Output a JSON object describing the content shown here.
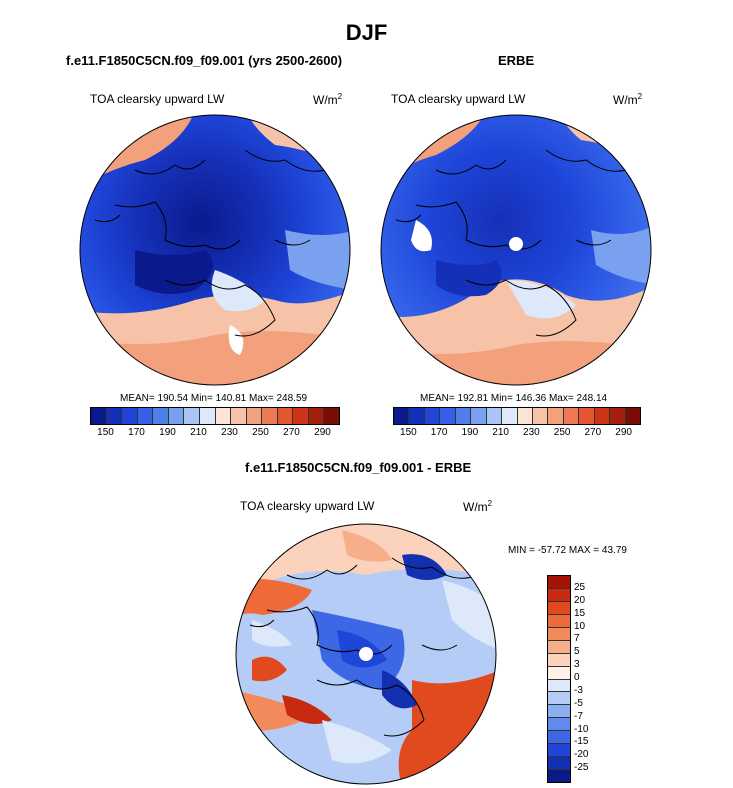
{
  "figure": {
    "title": "DJF",
    "panel_left": {
      "case": "f.e11.F1850C5CN.f09_f09.001 (yrs 2500-2600)",
      "variable": "TOA clearsky upward LW",
      "units_base": "W/m",
      "units_exp": "2",
      "stats": "MEAN= 190.54  Min= 140.81  Max= 248.59"
    },
    "panel_right": {
      "case": "ERBE",
      "variable": "TOA clearsky upward LW",
      "units_base": "W/m",
      "units_exp": "2",
      "stats": "MEAN= 192.81  Min= 146.36  Max= 248.14"
    },
    "panel_diff": {
      "case": "f.e11.F1850C5CN.f09_f09.001 - ERBE",
      "variable": "TOA clearsky upward LW",
      "units_base": "W/m",
      "units_exp": "2",
      "stats": "MIN = -57.72 MAX =  43.79"
    }
  },
  "colorbar_top": {
    "colors": [
      "#0a1a8c",
      "#1530b8",
      "#1e45d8",
      "#3260e8",
      "#4f7eed",
      "#7aa0f0",
      "#aac4f5",
      "#dde8fb",
      "#fbe4d6",
      "#f7c3a8",
      "#f3a07c",
      "#ee7a55",
      "#e45531",
      "#cd3418",
      "#a5200c",
      "#7a0e06"
    ],
    "ticks": [
      "150",
      "170",
      "190",
      "210",
      "230",
      "250",
      "270",
      "290"
    ]
  },
  "colorbar_diff": {
    "colors": [
      "#a51208",
      "#c82a10",
      "#e14a1e",
      "#ee6a38",
      "#f38a5c",
      "#f7ae8a",
      "#fbd3bd",
      "#fdf0e8",
      "#dde8fb",
      "#b5cdf6",
      "#8aaef2",
      "#5f8aee",
      "#3c68e6",
      "#1f46d6",
      "#1230b0",
      "#0b1a84"
    ],
    "ticks": [
      "25",
      "20",
      "15",
      "10",
      "7",
      "5",
      "3",
      "0",
      "-3",
      "-5",
      "-7",
      "-10",
      "-15",
      "-20",
      "-25"
    ]
  }
}
